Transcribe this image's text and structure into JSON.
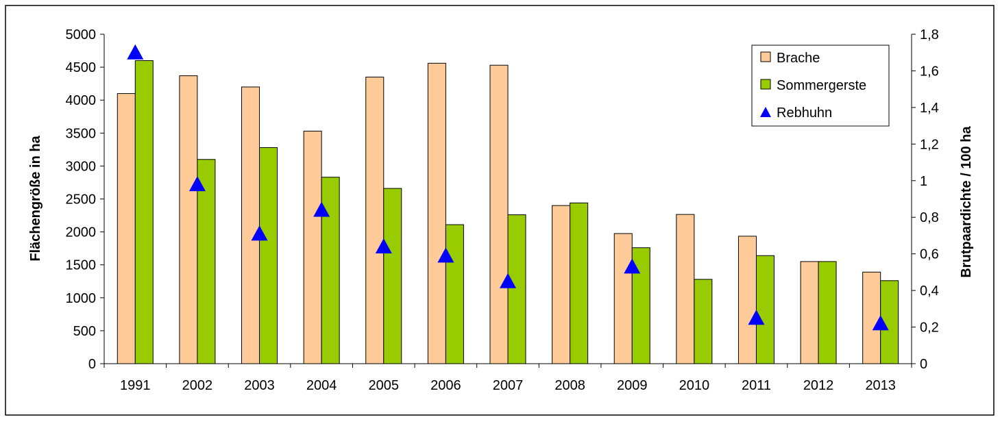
{
  "chart_data": {
    "type": "bar",
    "title": "",
    "xlabel": "",
    "ylabel": "Flächengröße in ha",
    "y2label": "Brutpaardichte / 100 ha",
    "ylim": [
      0,
      5000
    ],
    "y2lim": [
      0,
      1.8
    ],
    "yticks": [
      "0",
      "500",
      "1000",
      "1500",
      "2000",
      "2500",
      "3000",
      "3500",
      "4000",
      "4500",
      "5000"
    ],
    "y2ticks": [
      "0",
      "0,2",
      "0,4",
      "0,6",
      "0,8",
      "1",
      "1,2",
      "1,4",
      "1,6",
      "1,8"
    ],
    "categories": [
      "1991",
      "2002",
      "2003",
      "2004",
      "2005",
      "2006",
      "2007",
      "2008",
      "2009",
      "2010",
      "2011",
      "2012",
      "2013"
    ],
    "series": [
      {
        "name": "Brache",
        "type": "bar",
        "axis": "left",
        "color": "#FFCC99",
        "values": [
          4100,
          4370,
          4200,
          3530,
          4350,
          4560,
          4530,
          2400,
          1975,
          2265,
          1935,
          1550,
          1390
        ]
      },
      {
        "name": "Sommergerste",
        "type": "bar",
        "axis": "left",
        "color": "#99CC00",
        "values": [
          4600,
          3100,
          3280,
          2830,
          2660,
          2110,
          2260,
          2440,
          1760,
          1280,
          1640,
          1550,
          1260
        ]
      },
      {
        "name": "Rebhuhn",
        "type": "scatter",
        "marker": "triangle",
        "axis": "right",
        "color": "#0000FF",
        "values": [
          1.7,
          0.98,
          0.71,
          0.84,
          0.64,
          0.59,
          0.45,
          null,
          0.53,
          null,
          0.25,
          null,
          0.22
        ]
      }
    ],
    "legend": "top-right",
    "grid": false
  }
}
